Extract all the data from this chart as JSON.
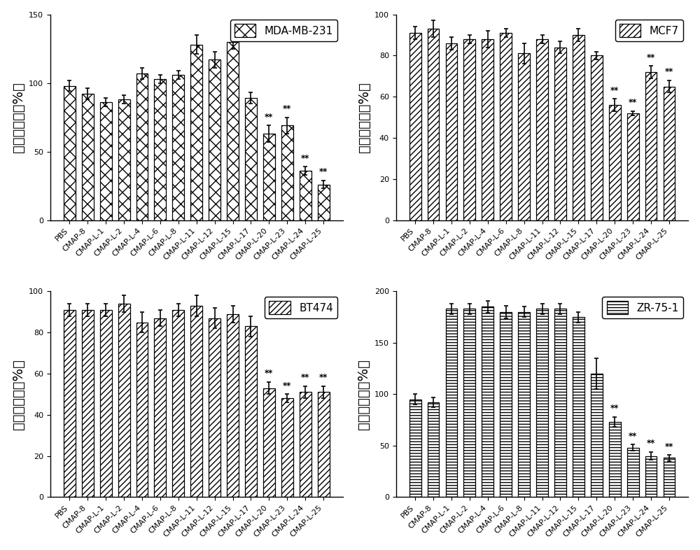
{
  "categories": [
    "PBS",
    "CMAP-8",
    "CMAP-L-1",
    "CMAP-L-2",
    "CMAP-L-4",
    "CMAP-L-6",
    "CMAP-L-8",
    "CMAP-L-11",
    "CMAP-L-12",
    "CMAP-L-15",
    "CMAP-L-17",
    "CMAP-L-20",
    "CMAP-L-23",
    "CMAP-L-24",
    "CMAP-L-25"
  ],
  "panels": [
    {
      "title": "MDA-MB-231",
      "hatch": "xx",
      "values": [
        98,
        92,
        86,
        88,
        107,
        103,
        106,
        128,
        117,
        130,
        89,
        63,
        69,
        36,
        26
      ],
      "errors": [
        4,
        4,
        3,
        3,
        4,
        3,
        3,
        7,
        6,
        5,
        4,
        6,
        6,
        3,
        3
      ],
      "sig": [
        false,
        false,
        false,
        false,
        false,
        false,
        false,
        false,
        false,
        false,
        false,
        true,
        true,
        true,
        true
      ],
      "ylim": [
        0,
        150
      ],
      "yticks": [
        0,
        50,
        100,
        150
      ]
    },
    {
      "title": "MCF7",
      "hatch": "////",
      "values": [
        91,
        93,
        86,
        88,
        88,
        91,
        81,
        88,
        84,
        90,
        80,
        56,
        52,
        72,
        65
      ],
      "errors": [
        3,
        4,
        3,
        2,
        4,
        2,
        5,
        2,
        3,
        3,
        2,
        3,
        1,
        3,
        3
      ],
      "sig": [
        false,
        false,
        false,
        false,
        false,
        false,
        false,
        false,
        false,
        false,
        false,
        true,
        true,
        true,
        true
      ],
      "ylim": [
        0,
        100
      ],
      "yticks": [
        0,
        20,
        40,
        60,
        80,
        100
      ]
    },
    {
      "title": "BT474",
      "hatch": "////",
      "values": [
        91,
        91,
        91,
        94,
        85,
        87,
        91,
        93,
        87,
        89,
        83,
        53,
        48,
        51,
        51
      ],
      "errors": [
        3,
        3,
        3,
        4,
        5,
        4,
        3,
        5,
        5,
        4,
        5,
        3,
        2,
        3,
        3
      ],
      "sig": [
        false,
        false,
        false,
        false,
        false,
        false,
        false,
        false,
        false,
        false,
        false,
        true,
        true,
        true,
        true
      ],
      "ylim": [
        0,
        100
      ],
      "yticks": [
        0,
        20,
        40,
        60,
        80,
        100
      ]
    },
    {
      "title": "ZR-75-1",
      "hatch": "----",
      "values": [
        95,
        92,
        183,
        183,
        185,
        180,
        180,
        183,
        183,
        175,
        120,
        73,
        48,
        40,
        38
      ],
      "errors": [
        5,
        5,
        5,
        5,
        6,
        6,
        5,
        5,
        5,
        5,
        15,
        5,
        3,
        4,
        3
      ],
      "sig": [
        false,
        false,
        false,
        false,
        false,
        false,
        false,
        false,
        false,
        false,
        false,
        true,
        true,
        true,
        true
      ],
      "ylim": [
        0,
        200
      ],
      "yticks": [
        0,
        50,
        100,
        150,
        200
      ]
    }
  ],
  "bar_color": "white",
  "edge_color": "black",
  "error_color": "black",
  "sig_color": "black",
  "ylabel": "细胞存活率（%）",
  "sig_marker": "**",
  "bar_width": 0.65,
  "ylabel_fontsize": 14,
  "tick_fontsize": 8,
  "legend_fontsize": 11,
  "title_fontsize": 12
}
